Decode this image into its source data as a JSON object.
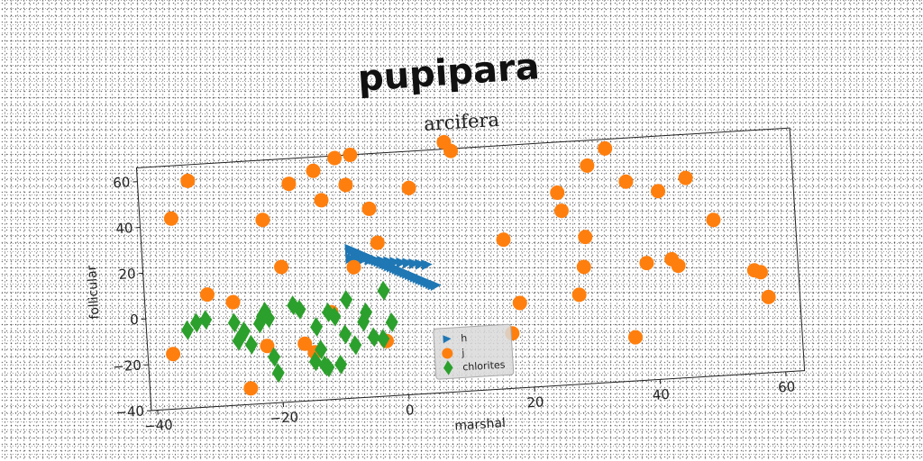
{
  "figure": {
    "title": "pupipara",
    "subtitle": "arcifera"
  },
  "chart_data": {
    "type": "scatter",
    "title": "arcifera",
    "xlabel": "marshal",
    "ylabel": "follicular",
    "xlim": [
      -41,
      63
    ],
    "ylim": [
      -40,
      66
    ],
    "xticks": [
      "−40",
      "−20",
      "0",
      "20",
      "40",
      "60"
    ],
    "xtick_values": [
      -40,
      -20,
      0,
      20,
      40,
      60
    ],
    "yticks": [
      "−40",
      "−20",
      "0",
      "20",
      "40",
      "60"
    ],
    "ytick_values": [
      -40,
      -20,
      0,
      20,
      40,
      60
    ],
    "grid": false,
    "legend": {
      "position": "lower-center",
      "entries": [
        "h",
        "j",
        "chlorites"
      ]
    },
    "series": [
      {
        "name": "h",
        "marker": "triangle-right",
        "color": "#1f77b4",
        "x": [
          -8,
          -7.6,
          -7.2,
          -6.8,
          -6.4,
          -6,
          -5.6,
          -5.2,
          -4.8,
          -4.4,
          -4,
          -3.6,
          -3.2,
          -2.8,
          -2.4,
          -2,
          -1.6,
          -1.2,
          -0.8,
          -0.4,
          0,
          0.4,
          0.8,
          1.2,
          1.6,
          2,
          2.4,
          2.8,
          3.2,
          3.6,
          4,
          4.4,
          4.8,
          5.2,
          -8,
          -7,
          -6,
          -5,
          -4,
          -3,
          -2,
          -1,
          0,
          1,
          2,
          3,
          4
        ],
        "y": [
          25,
          24.4,
          23.9,
          23.3,
          22.8,
          22.2,
          21.7,
          21.1,
          20.6,
          20,
          19.5,
          18.9,
          18.4,
          17.8,
          17.3,
          16.7,
          16.2,
          15.6,
          15.1,
          14.5,
          14,
          13.4,
          12.9,
          12.3,
          11.8,
          11.2,
          10.7,
          10.1,
          9.6,
          9,
          8.5,
          7.9,
          7.4,
          7,
          21,
          20.6,
          20.2,
          19.8,
          19.4,
          19,
          18.6,
          18.2,
          17.8,
          17.4,
          17,
          16.6,
          16.2
        ]
      },
      {
        "name": "j",
        "marker": "circle",
        "color": "#ff7f0e",
        "x": [
          -36,
          -33,
          -21.5,
          -19,
          -17,
          -13,
          -12,
          -9.5,
          -8,
          -7,
          -4.5,
          -3.5,
          -3,
          2,
          8,
          9,
          16.5,
          17,
          18.5,
          25.5,
          26,
          28,
          29,
          29.5,
          30.5,
          33.5,
          36.5,
          36.5,
          39,
          41.5,
          43,
          44,
          46,
          50,
          56,
          57,
          58,
          -37,
          -31,
          -27,
          -25,
          -22,
          -16,
          -14.5,
          -11.5,
          -7.5
        ],
        "y": [
          43,
          59,
          40,
          19,
          55,
          60,
          47,
          65,
          53,
          66,
          42,
          27,
          -16,
          50,
          69,
          65,
          25,
          -16,
          -3,
          44,
          36,
          -1,
          11,
          24,
          55,
          62,
          47,
          -21,
          11,
          42,
          12,
          9,
          47,
          28,
          5,
          4,
          -7,
          -16,
          9,
          5,
          -33,
          -15,
          -15,
          -19,
          -2,
          17
        ],
        "note": "values estimated visually from the plot"
      },
      {
        "name": "chlorites",
        "marker": "diamond",
        "color": "#2ca02c",
        "x": [
          -34.5,
          -33,
          -31.5,
          -27,
          -26.5,
          -25.5,
          -24.5,
          -23,
          -22.5,
          -22,
          -21.5,
          -21,
          -20.5,
          -17.5,
          -16.5,
          -14,
          -13.5,
          -13,
          -12,
          -11,
          -10.5,
          -9.5,
          -9,
          -8,
          -6.5,
          -6,
          -5,
          -3.5,
          -3,
          -2,
          -14.5,
          -12.5
        ],
        "y": [
          -6,
          -3,
          -2,
          -4,
          -12,
          -8,
          -14,
          -5,
          -2,
          0,
          -3,
          -20,
          -27,
          2,
          0,
          -8,
          -18,
          -25,
          -2,
          -4,
          -25,
          -12,
          3,
          -17,
          -7,
          -3,
          -14,
          -15,
          6,
          -8,
          -23,
          -26
        ]
      }
    ]
  }
}
